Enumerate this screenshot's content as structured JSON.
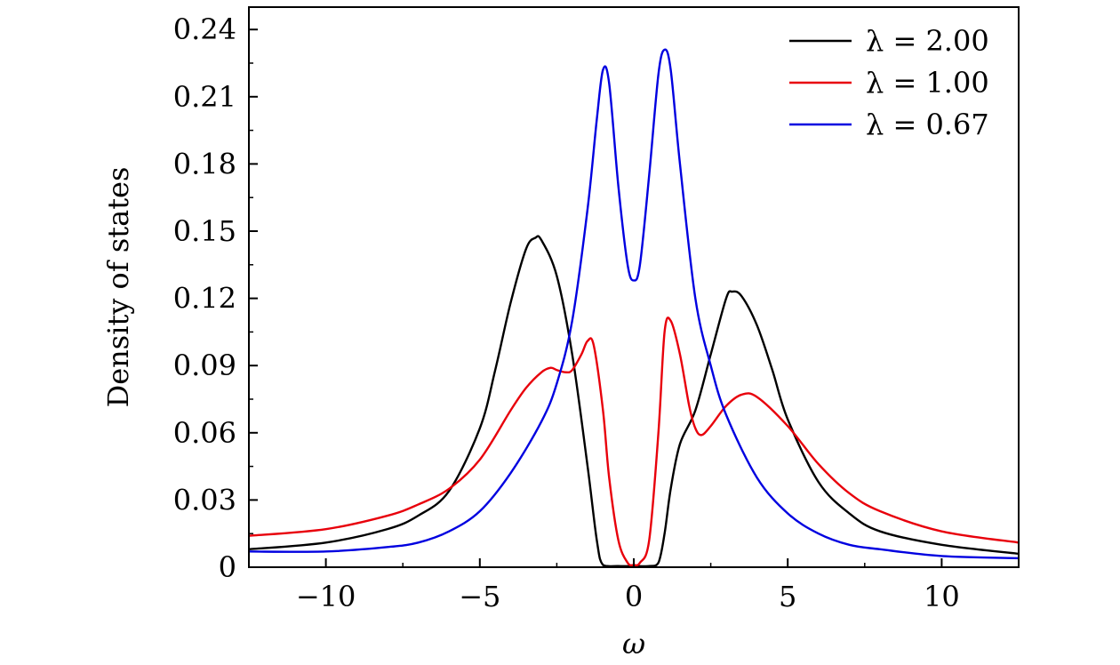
{
  "chart_data": {
    "type": "line",
    "xlabel": "ω",
    "ylabel": "Density of states",
    "xlim": [
      -12.5,
      12.5
    ],
    "ylim": [
      0,
      0.25
    ],
    "xticks": [
      -10,
      -5,
      0,
      5,
      10
    ],
    "xtick_labels": [
      "−10",
      "−5",
      "0",
      "5",
      "10"
    ],
    "yticks": [
      0,
      0.03,
      0.06,
      0.09,
      0.12,
      0.15,
      0.18,
      0.21,
      0.24
    ],
    "ytick_labels": [
      "0",
      "0.03",
      "0.06",
      "0.09",
      "0.12",
      "0.15",
      "0.18",
      "0.21",
      "0.24"
    ],
    "grid": false,
    "legend_position": "top-right",
    "series": [
      {
        "name": "λ = 2.00",
        "color": "#000000",
        "x": [
          -12.5,
          -10,
          -8,
          -7,
          -6,
          -5,
          -4.5,
          -4,
          -3.5,
          -3.2,
          -3,
          -2.5,
          -2,
          -1.5,
          -1.2,
          -1,
          -0.5,
          0,
          0.5,
          0.8,
          1,
          1.2,
          1.5,
          2,
          2.5,
          3,
          3.2,
          3.5,
          4,
          4.5,
          5,
          6,
          7,
          8,
          10,
          12.5
        ],
        "y": [
          0.008,
          0.011,
          0.017,
          0.023,
          0.034,
          0.062,
          0.088,
          0.118,
          0.142,
          0.147,
          0.146,
          0.13,
          0.095,
          0.045,
          0.012,
          0.001,
          0.0005,
          0.0005,
          0.0005,
          0.002,
          0.015,
          0.035,
          0.055,
          0.07,
          0.095,
          0.12,
          0.123,
          0.121,
          0.108,
          0.088,
          0.066,
          0.038,
          0.024,
          0.016,
          0.01,
          0.006
        ]
      },
      {
        "name": "λ = 1.00",
        "color": "#e8000b",
        "x": [
          -12.5,
          -10,
          -8,
          -7,
          -6,
          -5,
          -4,
          -3.5,
          -3,
          -2.7,
          -2.5,
          -2.2,
          -2,
          -1.7,
          -1.5,
          -1.3,
          -1,
          -0.8,
          -0.5,
          -0.2,
          0,
          0.2,
          0.5,
          0.8,
          1,
          1.2,
          1.5,
          1.8,
          2,
          2.2,
          2.5,
          3,
          3.5,
          4,
          5,
          6,
          7,
          8,
          10,
          12.5
        ],
        "y": [
          0.014,
          0.017,
          0.023,
          0.028,
          0.035,
          0.048,
          0.07,
          0.08,
          0.087,
          0.089,
          0.088,
          0.087,
          0.088,
          0.095,
          0.101,
          0.099,
          0.07,
          0.04,
          0.012,
          0.002,
          0.001,
          0.002,
          0.012,
          0.06,
          0.105,
          0.11,
          0.095,
          0.072,
          0.062,
          0.059,
          0.063,
          0.072,
          0.077,
          0.076,
          0.063,
          0.046,
          0.033,
          0.025,
          0.016,
          0.011
        ]
      },
      {
        "name": "λ = 0.67",
        "color": "#0000e0",
        "x": [
          -12.5,
          -10,
          -8,
          -7,
          -6,
          -5,
          -4,
          -3,
          -2.5,
          -2,
          -1.5,
          -1.2,
          -1,
          -0.8,
          -0.5,
          -0.2,
          0,
          0.2,
          0.5,
          0.8,
          1,
          1.2,
          1.5,
          2,
          2.5,
          3,
          4,
          5,
          6,
          7,
          8,
          10,
          12.5
        ],
        "y": [
          0.007,
          0.007,
          0.009,
          0.011,
          0.016,
          0.025,
          0.042,
          0.065,
          0.082,
          0.11,
          0.16,
          0.2,
          0.222,
          0.216,
          0.17,
          0.135,
          0.128,
          0.135,
          0.175,
          0.22,
          0.231,
          0.222,
          0.18,
          0.12,
          0.09,
          0.068,
          0.04,
          0.024,
          0.015,
          0.01,
          0.008,
          0.005,
          0.004
        ]
      }
    ]
  }
}
